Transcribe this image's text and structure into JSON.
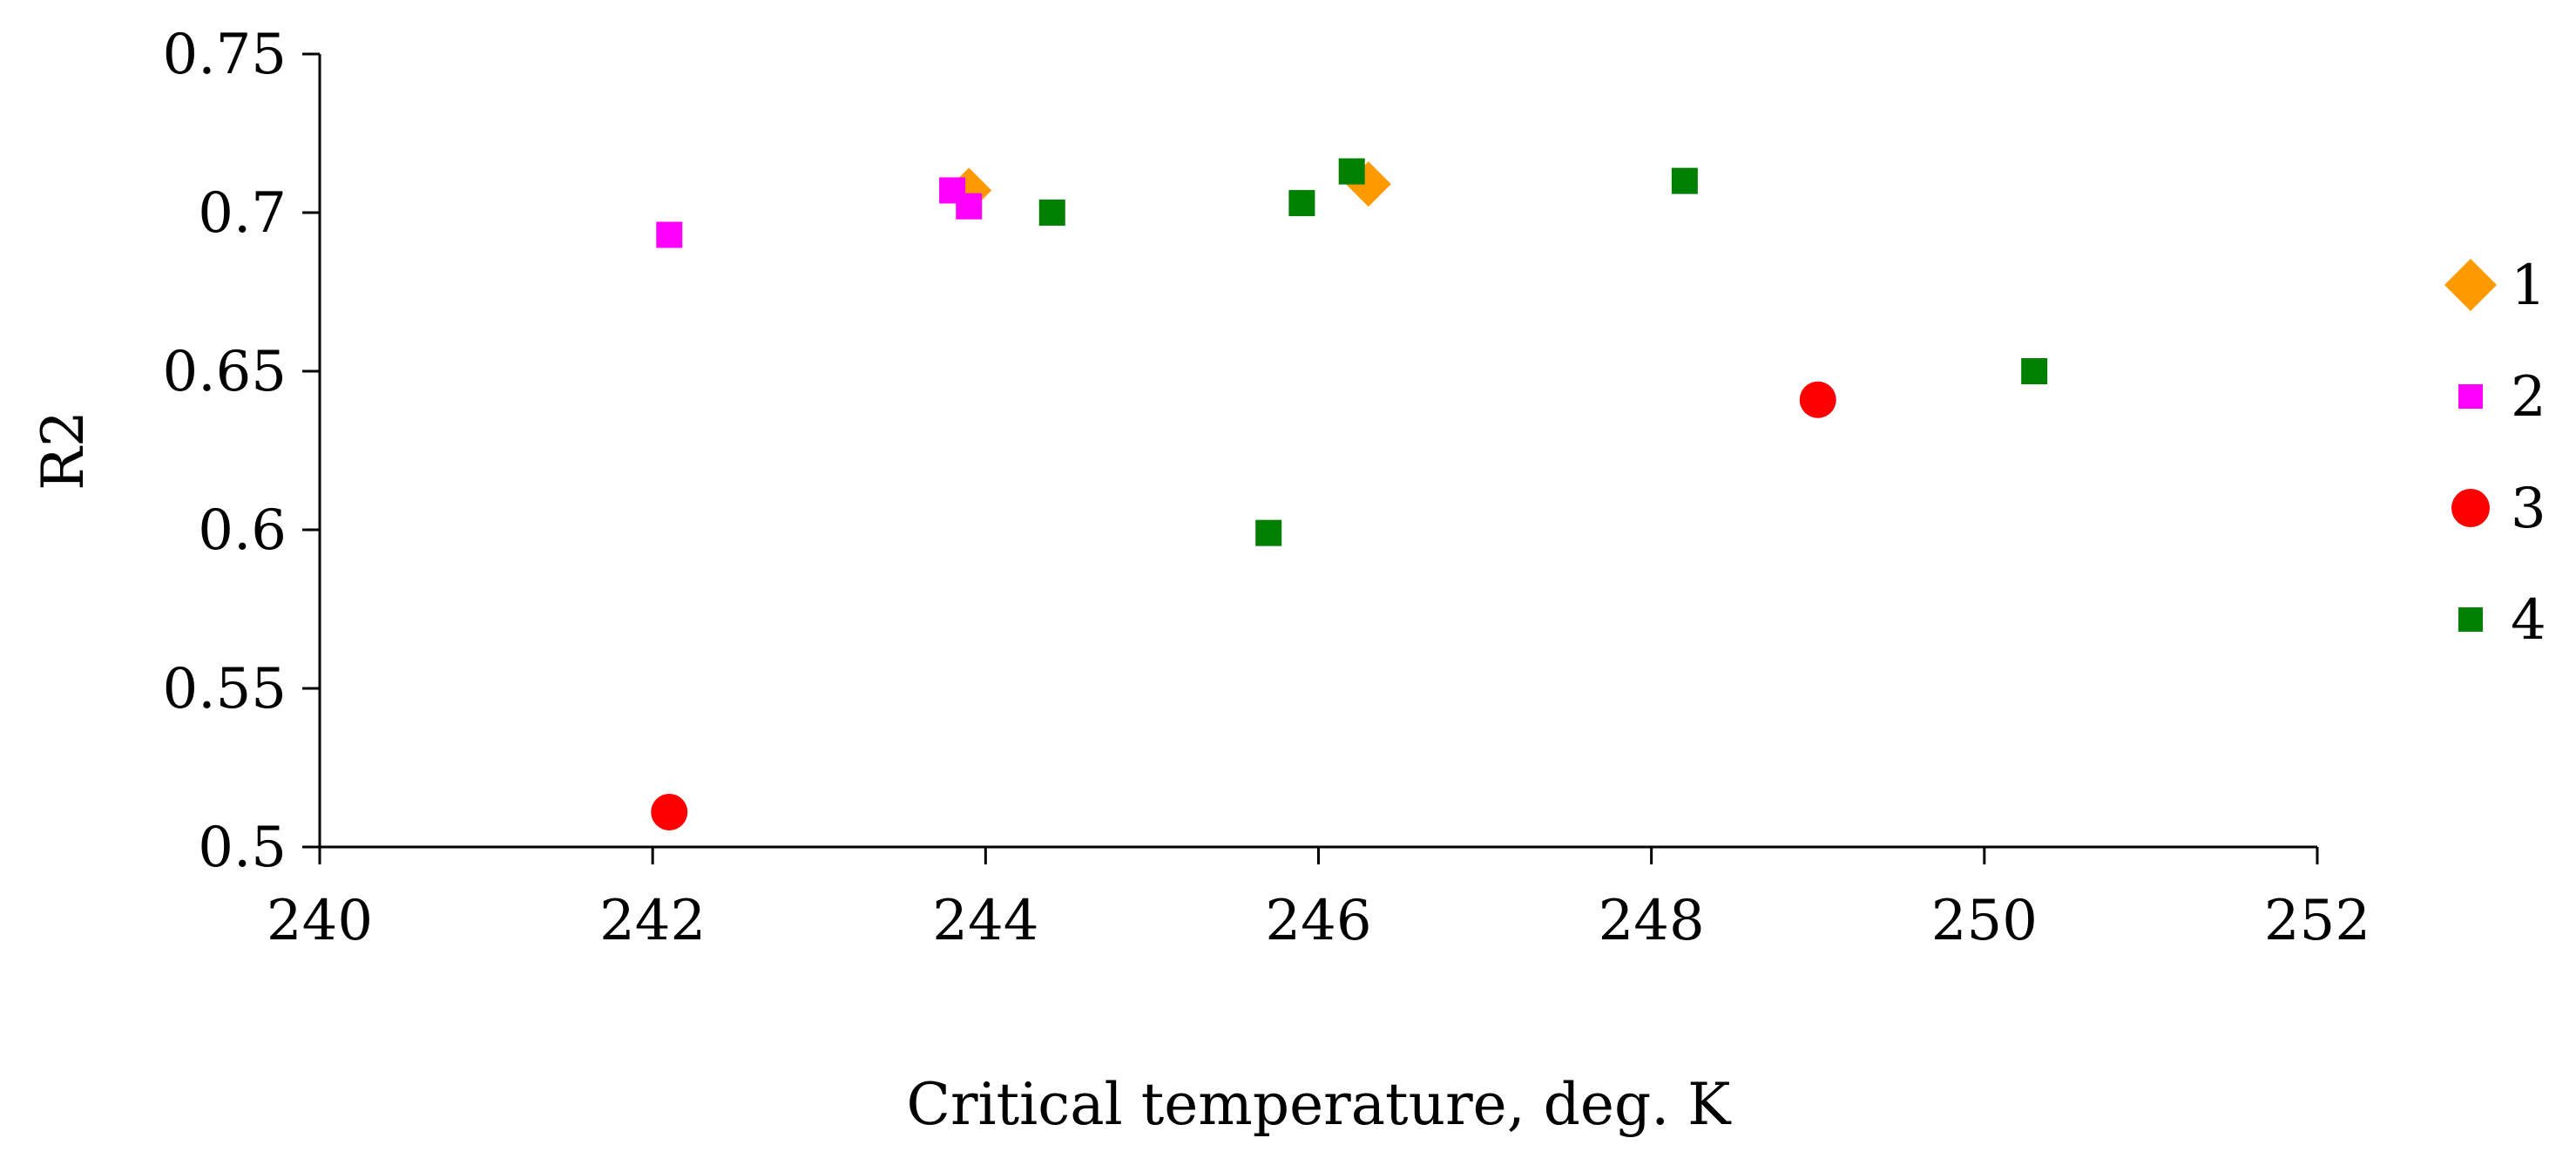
{
  "chart_data": {
    "type": "scatter",
    "title": "",
    "xlabel": "Critical temperature, deg. K",
    "ylabel": "R2",
    "xlim": [
      240,
      252
    ],
    "ylim": [
      0.5,
      0.75
    ],
    "x_ticks": [
      "240",
      "242",
      "244",
      "246",
      "248",
      "250",
      "252"
    ],
    "y_ticks": [
      "0.5",
      "0.55",
      "0.6",
      "0.65",
      "0.7",
      "0.75"
    ],
    "grid": false,
    "legend_position": "right",
    "series": [
      {
        "name": "1",
        "marker": "diamond",
        "color": "#FF9900",
        "points": [
          {
            "x": 243.9,
            "y": 0.707
          },
          {
            "x": 246.3,
            "y": 0.709
          }
        ]
      },
      {
        "name": "2",
        "marker": "square",
        "color": "#FF00FF",
        "points": [
          {
            "x": 242.1,
            "y": 0.693
          },
          {
            "x": 243.8,
            "y": 0.707
          },
          {
            "x": 243.9,
            "y": 0.702
          }
        ]
      },
      {
        "name": "3",
        "marker": "circle",
        "color": "#FF0000",
        "points": [
          {
            "x": 242.1,
            "y": 0.511
          },
          {
            "x": 249.0,
            "y": 0.641
          }
        ]
      },
      {
        "name": "4",
        "marker": "square",
        "color": "#008000",
        "points": [
          {
            "x": 244.4,
            "y": 0.7
          },
          {
            "x": 245.7,
            "y": 0.599
          },
          {
            "x": 245.9,
            "y": 0.703
          },
          {
            "x": 246.2,
            "y": 0.713
          },
          {
            "x": 248.2,
            "y": 0.71
          },
          {
            "x": 250.3,
            "y": 0.65
          }
        ]
      }
    ]
  }
}
